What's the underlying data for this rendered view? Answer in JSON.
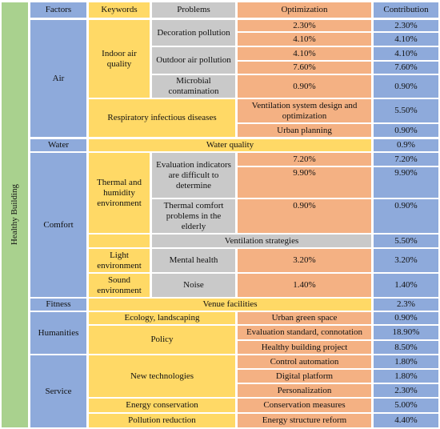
{
  "side_label": "Healthy Building",
  "header": {
    "factors": "Factors",
    "keywords": "Keywords",
    "problems": "Problems",
    "optimization": "Optimization",
    "contribution": "Contribution"
  },
  "air": {
    "factor": "Air",
    "kw_indoor": "Indoor air quality",
    "p_decoration": "Decoration pollution",
    "p_outdoor": "Outdoor air pollution",
    "p_microbial": "Microbial contamination",
    "o1": "2.30%",
    "o2": "4.10%",
    "o3": "4.10%",
    "o4": "7.60%",
    "o5": "0.90%",
    "c1": "2.30%",
    "c2": "4.10%",
    "c3": "4.10%",
    "c4": "7.60%",
    "c5": "0.90%",
    "kw_resp": "Respiratory infectious diseases",
    "o6": "Ventilation system design and optimization",
    "c6": "5.50%",
    "o7": "Urban planning",
    "c7": "0.90%"
  },
  "water": {
    "factor": "Water",
    "kw": "Water quality",
    "c": "0.9%"
  },
  "comfort": {
    "factor": "Comfort",
    "kw_thermal": "Thermal and humidity environment",
    "p_eval": "Evaluation indicators are difficult to determine",
    "o1": "7.20%",
    "c1": "7.20%",
    "o2": "9.90%",
    "c2": "9.90%",
    "p_elderly": "Thermal comfort problems in the elderly",
    "o3": "0.90%",
    "c3": "0.90%",
    "vent": "Ventilation strategies",
    "c4": "5.50%",
    "kw_light": "Light environment",
    "p_mental": "Mental health",
    "o5": "3.20%",
    "c5": "3.20%",
    "kw_sound": "Sound environment",
    "p_noise": "Noise",
    "o6": "1.40%",
    "c6": "1.40%"
  },
  "fitness": {
    "factor": "Fitness",
    "kw": "Venue facilities",
    "c": "2.3%"
  },
  "humanities": {
    "factor": "Humanities",
    "kw_eco": "Ecology, landscaping",
    "o1": "Urban green space",
    "c1": "0.90%",
    "kw_policy": "Policy",
    "o2": "Evaluation standard, connotation",
    "c2": "18.90%",
    "o3": "Healthy building project",
    "c3": "8.50%"
  },
  "service": {
    "factor": "Service",
    "kw_tech": "New technologies",
    "o1": "Control automation",
    "c1": "1.80%",
    "o2": "Digital platform",
    "c2": "1.80%",
    "o3": "Personalization",
    "c3": "2.30%",
    "kw_energy": "Energy conservation",
    "o4": "Conservation measures",
    "c4": "5.00%",
    "kw_pollution": "Pollution reduction",
    "o5": "Energy structure reform",
    "c5": "4.40%"
  },
  "colors": {
    "side": "#a9d18e",
    "factor": "#8eaadb",
    "keyword": "#ffd966",
    "problem": "#c9c9c9",
    "optimization": "#f4b183",
    "contribution": "#8eaadb"
  }
}
